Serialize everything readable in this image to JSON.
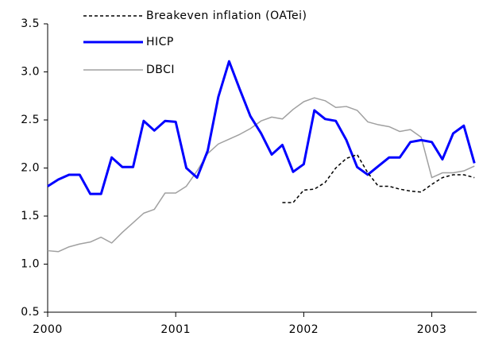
{
  "chart_data": {
    "type": "line",
    "x": [
      2000,
      2000.083,
      2000.167,
      2000.25,
      2000.333,
      2000.417,
      2000.5,
      2000.583,
      2000.667,
      2000.75,
      2000.833,
      2000.917,
      2001,
      2001.083,
      2001.167,
      2001.25,
      2001.333,
      2001.417,
      2001.5,
      2001.583,
      2001.667,
      2001.75,
      2001.833,
      2001.917,
      2002,
      2002.083,
      2002.167,
      2002.25,
      2002.333,
      2002.417,
      2002.5,
      2002.583,
      2002.667,
      2002.75,
      2002.833,
      2002.917,
      2003,
      2003.083,
      2003.167,
      2003.25,
      2003.333
    ],
    "series": [
      {
        "name": "Breakeven inflation (OATei)",
        "color": "#000000",
        "dash": true,
        "values": [
          null,
          null,
          null,
          null,
          null,
          null,
          null,
          null,
          null,
          null,
          null,
          null,
          null,
          null,
          null,
          null,
          null,
          null,
          null,
          null,
          null,
          null,
          1.64,
          1.64,
          1.77,
          1.78,
          1.85,
          2.0,
          2.1,
          2.14,
          1.95,
          1.81,
          1.81,
          1.78,
          1.76,
          1.75,
          1.83,
          1.9,
          1.93,
          1.93,
          1.9
        ]
      },
      {
        "name": "HICP",
        "color": "#0000ff",
        "values": [
          1.81,
          1.88,
          1.93,
          1.93,
          1.73,
          1.73,
          2.11,
          2.01,
          2.01,
          2.49,
          2.39,
          2.49,
          2.48,
          2.0,
          1.9,
          2.18,
          2.74,
          3.11,
          2.82,
          2.54,
          2.36,
          2.14,
          2.24,
          1.96,
          2.04,
          2.6,
          2.51,
          2.49,
          2.29,
          2.01,
          1.93,
          2.02,
          2.11,
          2.11,
          2.27,
          2.29,
          2.27,
          2.09,
          2.36,
          2.44,
          2.05
        ]
      },
      {
        "name": "DBCI",
        "color": "#a0a0a0",
        "values": [
          1.14,
          1.13,
          1.18,
          1.21,
          1.23,
          1.28,
          1.22,
          1.33,
          1.43,
          1.53,
          1.57,
          1.74,
          1.74,
          1.81,
          1.97,
          2.15,
          2.25,
          2.3,
          2.35,
          2.41,
          2.49,
          2.53,
          2.51,
          2.61,
          2.69,
          2.73,
          2.7,
          2.63,
          2.64,
          2.6,
          2.48,
          2.45,
          2.43,
          2.38,
          2.4,
          2.32,
          1.9,
          1.95,
          1.95,
          1.97,
          2.02
        ]
      }
    ],
    "xlim": [
      2000,
      2003.35
    ],
    "xticks": [
      2000,
      2001,
      2002,
      2003
    ],
    "ylim": [
      0.5,
      3.5
    ],
    "yticks": [
      {
        "value": 0.5,
        "label": "0.5"
      },
      {
        "value": 1.0,
        "label": "1.0"
      },
      {
        "value": 1.5,
        "label": "1.5"
      },
      {
        "value": 2.0,
        "label": "2.0"
      },
      {
        "value": 2.5,
        "label": "2.5"
      },
      {
        "value": 3.0,
        "label": "3.0"
      },
      {
        "value": 3.5,
        "label": "3.5"
      }
    ],
    "grid": false,
    "legend": "top"
  }
}
